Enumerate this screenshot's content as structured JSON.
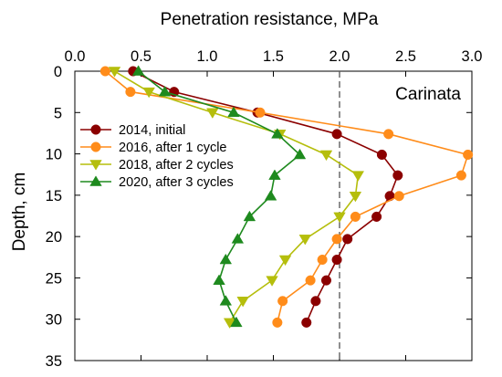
{
  "chart_data": {
    "type": "line",
    "xlabel": "Penetration resistance, MPa",
    "ylabel": "Depth, cm",
    "xlim": [
      0,
      3.0
    ],
    "ylim": [
      0,
      35
    ],
    "x_axis_position": "top",
    "y_axis_inverted": true,
    "x_ticks": [
      "0.0",
      "0.5",
      "1.0",
      "1.5",
      "2.0",
      "2.5",
      "3.0"
    ],
    "y_ticks": [
      "0",
      "5",
      "10",
      "15",
      "20",
      "25",
      "30",
      "35"
    ],
    "reference_line": {
      "x": 2.0,
      "style": "dashed"
    },
    "annotation": "Carinata",
    "legend_position": "center-left",
    "grid": false,
    "series": [
      {
        "name": "2014, initial",
        "color": "#8b0000",
        "marker": "circle",
        "points": [
          [
            0.44,
            0
          ],
          [
            0.75,
            2.5
          ],
          [
            1.38,
            5
          ],
          [
            1.98,
            7.6
          ],
          [
            2.32,
            10.1
          ],
          [
            2.44,
            12.6
          ],
          [
            2.38,
            15.1
          ],
          [
            2.28,
            17.6
          ],
          [
            2.06,
            20.3
          ],
          [
            1.98,
            22.8
          ],
          [
            1.9,
            25.3
          ],
          [
            1.82,
            27.8
          ],
          [
            1.75,
            30.4
          ]
        ]
      },
      {
        "name": "2016, after 1 cycle",
        "color": "#ff8c1a",
        "marker": "circle",
        "points": [
          [
            0.23,
            0
          ],
          [
            0.42,
            2.5
          ],
          [
            1.4,
            5
          ],
          [
            2.37,
            7.6
          ],
          [
            2.97,
            10.1
          ],
          [
            2.92,
            12.6
          ],
          [
            2.45,
            15.1
          ],
          [
            2.12,
            17.6
          ],
          [
            1.98,
            20.3
          ],
          [
            1.87,
            22.8
          ],
          [
            1.78,
            25.3
          ],
          [
            1.57,
            27.8
          ],
          [
            1.53,
            30.4
          ]
        ]
      },
      {
        "name": "2018, after 2 cycles",
        "color": "#b5be0c",
        "marker": "triangle-down",
        "points": [
          [
            0.3,
            0
          ],
          [
            0.56,
            2.5
          ],
          [
            1.04,
            5
          ],
          [
            1.55,
            7.6
          ],
          [
            1.9,
            10.1
          ],
          [
            2.14,
            12.6
          ],
          [
            2.12,
            15.1
          ],
          [
            2.0,
            17.6
          ],
          [
            1.74,
            20.3
          ],
          [
            1.59,
            22.8
          ],
          [
            1.49,
            25.3
          ],
          [
            1.27,
            27.8
          ],
          [
            1.17,
            30.4
          ]
        ]
      },
      {
        "name": "2020, after 3 cycles",
        "color": "#1e8a1e",
        "marker": "triangle-up",
        "points": [
          [
            0.48,
            0
          ],
          [
            0.68,
            2.5
          ],
          [
            1.2,
            5
          ],
          [
            1.53,
            7.6
          ],
          [
            1.7,
            10.1
          ],
          [
            1.51,
            12.6
          ],
          [
            1.48,
            15.1
          ],
          [
            1.32,
            17.6
          ],
          [
            1.23,
            20.3
          ],
          [
            1.14,
            22.8
          ],
          [
            1.09,
            25.3
          ],
          [
            1.14,
            27.8
          ],
          [
            1.22,
            30.4
          ]
        ]
      }
    ]
  }
}
